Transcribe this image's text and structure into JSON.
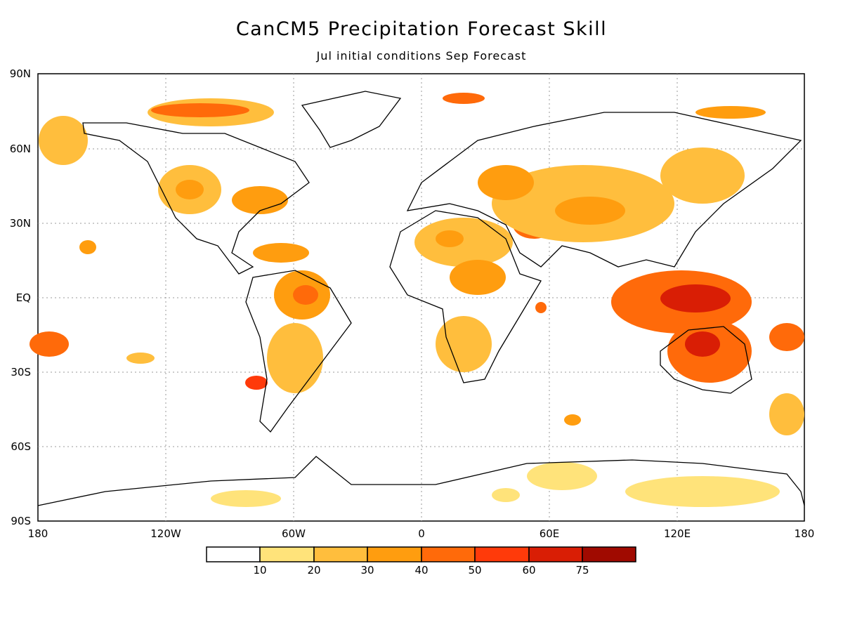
{
  "title": "CanCM5 Precipitation Forecast Skill",
  "subtitle": "Jul initial conditions   Sep Forecast",
  "y_axis_ticks": [
    "90N",
    "60N",
    "30N",
    "EQ",
    "30S",
    "60S",
    "90S"
  ],
  "x_axis_ticks": [
    "180",
    "120W",
    "60W",
    "0",
    "60E",
    "120E",
    "180"
  ],
  "colorbar": {
    "labels": [
      "10",
      "20",
      "30",
      "40",
      "50",
      "60",
      "75"
    ],
    "colors": [
      "#ffffff",
      "#ffe37a",
      "#ffbe3d",
      "#ff9d0f",
      "#ff6a0a",
      "#ff3a0a",
      "#d91e05",
      "#a00a00"
    ]
  }
}
